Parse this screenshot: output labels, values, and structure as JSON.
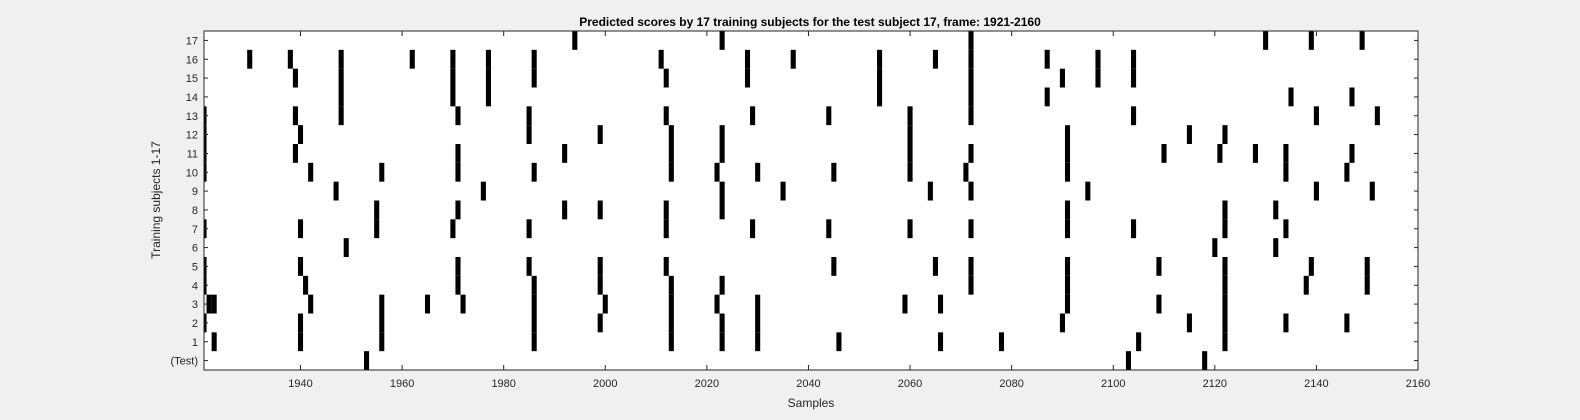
{
  "chart_data": {
    "type": "heatmap",
    "title": "Predicted scores by 17 training subjects for the test subject 17, frame: 1921-2160",
    "xlabel": "Samples",
    "ylabel": "Training subjects 1-17",
    "xlim": [
      1921,
      2160
    ],
    "xticks": [
      1940,
      1960,
      1980,
      2000,
      2020,
      2040,
      2060,
      2080,
      2100,
      2120,
      2140,
      2160
    ],
    "rows": [
      "(Test)",
      "1",
      "2",
      "3",
      "4",
      "5",
      "6",
      "7",
      "8",
      "9",
      "10",
      "11",
      "12",
      "13",
      "14",
      "15",
      "16",
      "17"
    ],
    "cell_width": 1,
    "colors": {
      "mark": "#000000",
      "background": "#ffffff"
    },
    "marks": [
      {
        "row": "(Test)",
        "x": [
          1953,
          2103,
          2118
        ]
      },
      {
        "row": "1",
        "x": [
          1923,
          1940,
          1956,
          1986,
          2013,
          2023,
          2030,
          2046,
          2066,
          2078,
          2105,
          2122
        ]
      },
      {
        "row": "2",
        "x": [
          1921,
          1940,
          1956,
          1986,
          1999,
          2013,
          2023,
          2030,
          2090,
          2115,
          2122,
          2134,
          2146
        ]
      },
      {
        "row": "3",
        "x": [
          1922,
          1923,
          1942,
          1956,
          1965,
          1972,
          1986,
          2000,
          2013,
          2022,
          2030,
          2059,
          2066,
          2091,
          2109,
          2122
        ]
      },
      {
        "row": "4",
        "x": [
          1921,
          1941,
          1971,
          1986,
          1999,
          2013,
          2023,
          2072,
          2091,
          2122,
          2138,
          2150
        ]
      },
      {
        "row": "5",
        "x": [
          1921,
          1940,
          1971,
          1985,
          1999,
          2012,
          2045,
          2065,
          2072,
          2091,
          2109,
          2122,
          2139,
          2150
        ]
      },
      {
        "row": "6",
        "x": [
          1949,
          2120,
          2132
        ]
      },
      {
        "row": "7",
        "x": [
          1921,
          1940,
          1955,
          1970,
          1985,
          2012,
          2029,
          2044,
          2060,
          2072,
          2091,
          2104,
          2122,
          2134
        ]
      },
      {
        "row": "8",
        "x": [
          1955,
          1971,
          1992,
          1999,
          2012,
          2023,
          2091,
          2122,
          2132
        ]
      },
      {
        "row": "9",
        "x": [
          1947,
          1976,
          2023,
          2035,
          2064,
          2072,
          2095,
          2140,
          2151
        ]
      },
      {
        "row": "10",
        "x": [
          1921,
          1942,
          1956,
          1971,
          1986,
          2013,
          2022,
          2030,
          2045,
          2060,
          2071,
          2091,
          2134,
          2146
        ]
      },
      {
        "row": "11",
        "x": [
          1921,
          1939,
          1971,
          1992,
          2013,
          2023,
          2060,
          2072,
          2091,
          2110,
          2121,
          2128,
          2134,
          2147
        ]
      },
      {
        "row": "12",
        "x": [
          1921,
          1940,
          1985,
          1999,
          2013,
          2023,
          2060,
          2091,
          2115,
          2122
        ]
      },
      {
        "row": "13",
        "x": [
          1921,
          1939,
          1948,
          1971,
          1985,
          2012,
          2029,
          2044,
          2060,
          2072,
          2104,
          2140,
          2152
        ]
      },
      {
        "row": "14",
        "x": [
          1948,
          1970,
          1977,
          2054,
          2072,
          2087,
          2135,
          2147
        ]
      },
      {
        "row": "15",
        "x": [
          1920,
          1939,
          1948,
          1970,
          1977,
          1986,
          2012,
          2028,
          2054,
          2072,
          2090,
          2097,
          2104
        ]
      },
      {
        "row": "16",
        "x": [
          1920,
          1930,
          1938,
          1948,
          1962,
          1970,
          1977,
          1986,
          2011,
          2028,
          2037,
          2054,
          2065,
          2072,
          2087,
          2097,
          2104
        ]
      },
      {
        "row": "17",
        "x": [
          1994,
          2023,
          2072,
          2130,
          2139,
          2149
        ]
      }
    ]
  }
}
